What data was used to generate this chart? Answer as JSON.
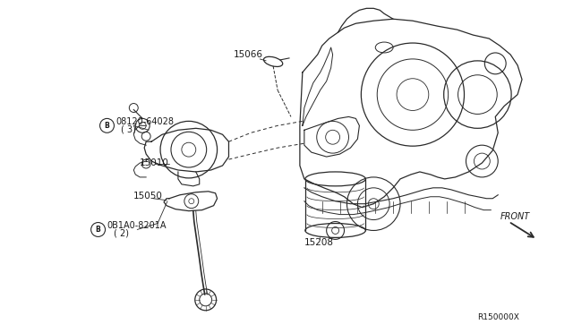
{
  "background_color": "#ffffff",
  "line_color": "#2a2a2a",
  "text_color": "#1a1a1a",
  "fig_width": 6.4,
  "fig_height": 3.72,
  "dpi": 100,
  "labels": {
    "part1": "15066",
    "part2_num": "08120-64028",
    "part2_qty": "( 3)",
    "part3": "15010",
    "part4": "15050",
    "part5_num": "0B1A0-8201A",
    "part5_qty": "( 2)",
    "part6": "15208",
    "front": "FRONT",
    "diagram_id": "R150000X"
  }
}
